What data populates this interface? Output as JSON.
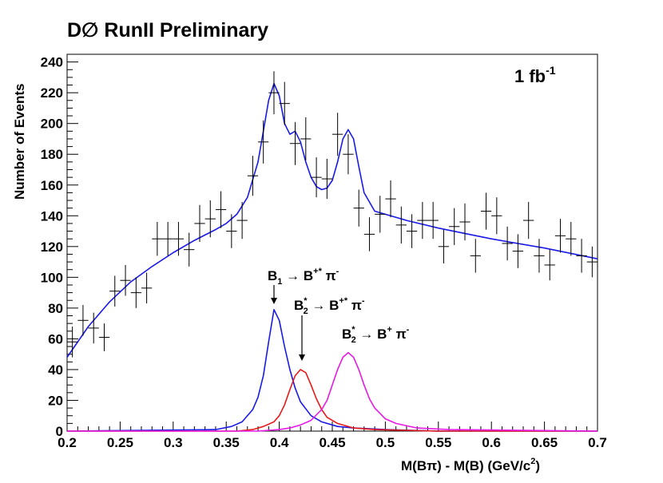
{
  "title": "D∅ RunII Preliminary",
  "luminosity": {
    "text": "1 fb",
    "sup": "-1"
  },
  "chart_data": {
    "type": "scatter",
    "xlabel": "M(Bπ) - M(B)   (GeV/c",
    "xlabel_sup": "2",
    "xlabel_close": ")",
    "ylabel": "Number of Events",
    "xlim": [
      0.2,
      0.7
    ],
    "ylim": [
      0,
      245
    ],
    "xticks": [
      0.2,
      0.25,
      0.3,
      0.35,
      0.4,
      0.45,
      0.5,
      0.55,
      0.6,
      0.65,
      0.7
    ],
    "yticks": [
      0,
      20,
      40,
      60,
      80,
      100,
      120,
      140,
      160,
      180,
      200,
      220,
      240
    ],
    "bin_width": 0.01,
    "series": [
      {
        "kind": "data-points",
        "color": "#000000",
        "x": [
          0.205,
          0.215,
          0.225,
          0.235,
          0.245,
          0.255,
          0.265,
          0.275,
          0.285,
          0.295,
          0.305,
          0.315,
          0.325,
          0.335,
          0.345,
          0.355,
          0.365,
          0.375,
          0.385,
          0.395,
          0.405,
          0.415,
          0.425,
          0.435,
          0.445,
          0.455,
          0.465,
          0.475,
          0.485,
          0.495,
          0.505,
          0.515,
          0.525,
          0.535,
          0.545,
          0.555,
          0.565,
          0.575,
          0.585,
          0.595,
          0.605,
          0.615,
          0.625,
          0.635,
          0.645,
          0.655,
          0.665,
          0.675,
          0.685,
          0.695
        ],
        "y": [
          58,
          72,
          67,
          61,
          91,
          98,
          90,
          93,
          125,
          125,
          125,
          118,
          135,
          138,
          144,
          130,
          137,
          166,
          188,
          220,
          213,
          187,
          190,
          165,
          164,
          193,
          180,
          145,
          128,
          141,
          151,
          134,
          130,
          137,
          137,
          120,
          133,
          136,
          114,
          143,
          140,
          122,
          117,
          137,
          114,
          108,
          127,
          125,
          114,
          110
        ],
        "err": [
          10,
          10,
          10,
          9,
          10,
          10,
          10,
          10,
          11,
          11,
          11,
          11,
          12,
          12,
          12,
          11,
          12,
          13,
          14,
          14,
          14,
          14,
          14,
          13,
          13,
          14,
          13,
          12,
          11,
          12,
          12,
          12,
          11,
          12,
          12,
          11,
          12,
          12,
          11,
          12,
          12,
          11,
          11,
          12,
          11,
          10,
          11,
          11,
          11,
          10
        ]
      },
      {
        "kind": "total-fit",
        "color": "#1a1ae6",
        "x": [
          0.2,
          0.22,
          0.24,
          0.26,
          0.28,
          0.3,
          0.32,
          0.34,
          0.35,
          0.36,
          0.37,
          0.38,
          0.385,
          0.39,
          0.395,
          0.4,
          0.405,
          0.41,
          0.415,
          0.42,
          0.425,
          0.43,
          0.435,
          0.44,
          0.445,
          0.45,
          0.455,
          0.46,
          0.465,
          0.47,
          0.475,
          0.48,
          0.49,
          0.5,
          0.52,
          0.55,
          0.6,
          0.65,
          0.7
        ],
        "y": [
          48,
          68,
          84,
          97,
          107,
          116,
          124,
          131,
          135,
          141,
          152,
          175,
          195,
          215,
          226,
          218,
          200,
          193,
          195,
          188,
          175,
          165,
          159,
          157,
          158,
          163,
          175,
          190,
          196,
          190,
          172,
          155,
          143,
          141,
          137,
          132,
          125,
          119,
          112
        ]
      },
      {
        "kind": "B1 → B+* π-",
        "color": "#1a1ae6",
        "x": [
          0.2,
          0.34,
          0.355,
          0.365,
          0.375,
          0.38,
          0.385,
          0.39,
          0.395,
          0.4,
          0.405,
          0.41,
          0.415,
          0.42,
          0.43,
          0.44,
          0.455,
          0.47,
          0.5,
          0.55,
          0.7
        ],
        "y": [
          0,
          1,
          3,
          6,
          14,
          22,
          36,
          58,
          79,
          72,
          55,
          40,
          28,
          19,
          10,
          6,
          3,
          2,
          1,
          0,
          0
        ]
      },
      {
        "kind": "B2* → B+* π-",
        "color": "#e61a1a",
        "x": [
          0.2,
          0.36,
          0.375,
          0.385,
          0.395,
          0.4,
          0.405,
          0.41,
          0.415,
          0.42,
          0.425,
          0.43,
          0.435,
          0.44,
          0.445,
          0.455,
          0.47,
          0.49,
          0.55,
          0.7
        ],
        "y": [
          0,
          0,
          1,
          3,
          6,
          10,
          17,
          27,
          36,
          40,
          38,
          30,
          21,
          14,
          9,
          5,
          2,
          1,
          0,
          0
        ]
      },
      {
        "kind": "B2* → B+ π-",
        "color": "#e61ae6",
        "x": [
          0.2,
          0.38,
          0.4,
          0.41,
          0.42,
          0.43,
          0.44,
          0.445,
          0.45,
          0.455,
          0.46,
          0.465,
          0.47,
          0.475,
          0.48,
          0.485,
          0.49,
          0.5,
          0.51,
          0.53,
          0.56,
          0.7
        ],
        "y": [
          0,
          0,
          1,
          2,
          4,
          7,
          14,
          20,
          30,
          40,
          48,
          51,
          48,
          40,
          30,
          21,
          15,
          8,
          5,
          2,
          1,
          0
        ]
      }
    ]
  },
  "annotations": [
    {
      "main": "B",
      "sub": "1",
      "sup": "",
      "rest_a": " → B",
      "rest_sup": "+*",
      "rest_b": " π",
      "pi_sup": "-"
    },
    {
      "main": "B",
      "sub": "2",
      "sup": "*",
      "rest_a": " → B",
      "rest_sup": "+*",
      "rest_b": " π",
      "pi_sup": "-"
    },
    {
      "main": "B",
      "sub": "2",
      "sup": "*",
      "rest_a": " → B",
      "rest_sup": "+",
      "rest_b": " π",
      "pi_sup": "-"
    }
  ]
}
